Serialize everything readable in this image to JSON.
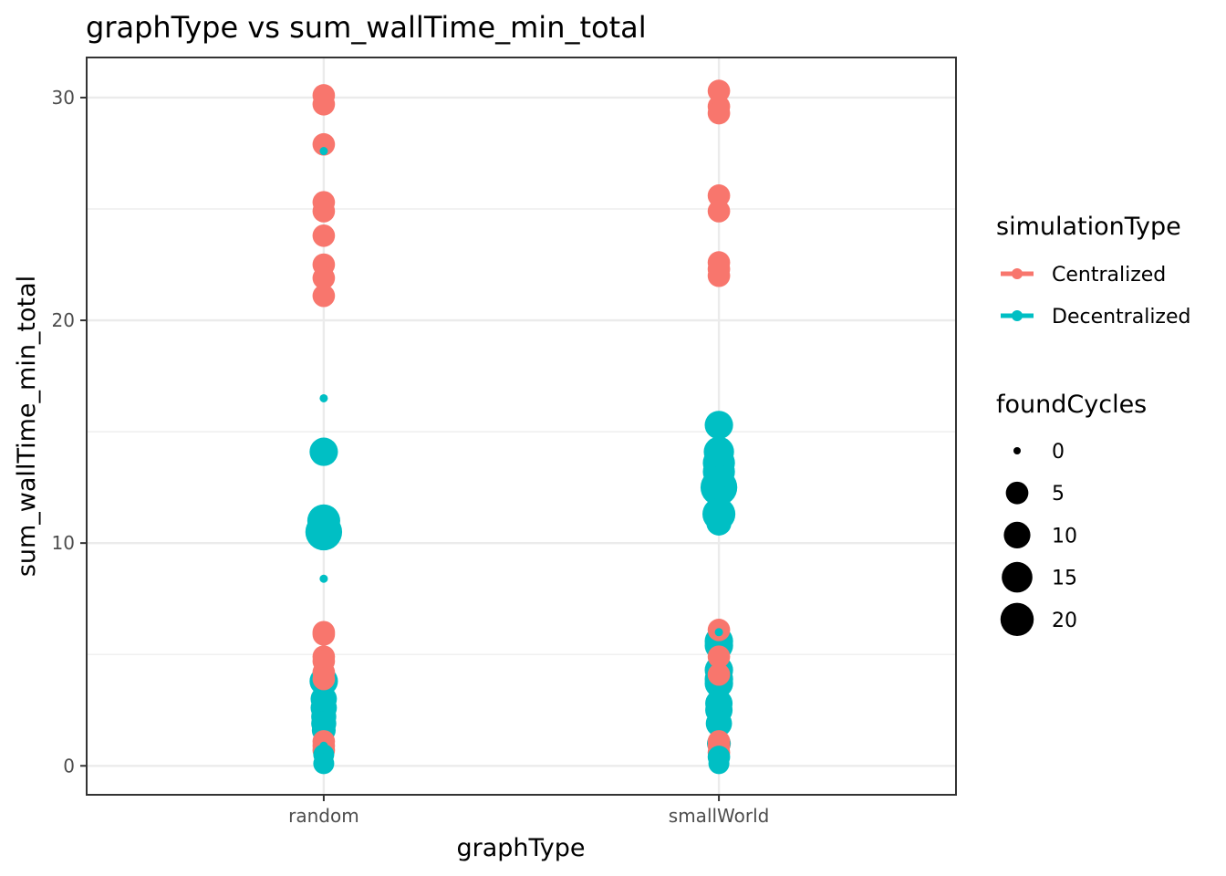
{
  "chart_data": {
    "type": "scatter",
    "title": "graphType  vs  sum_wallTime_min_total",
    "xlabel": "graphType",
    "ylabel": "sum_wallTime_min_total",
    "categories": [
      "random",
      "smallWorld"
    ],
    "ylim": [
      -1.3,
      31.8
    ],
    "yticks": [
      0,
      10,
      20,
      30
    ],
    "grid": true,
    "legend_position": "right",
    "color_legend": {
      "title": "simulationType",
      "entries": [
        {
          "name": "Centralized",
          "color": "#F8766D"
        },
        {
          "name": "Decentralized",
          "color": "#00BFC4"
        }
      ]
    },
    "size_legend": {
      "title": "foundCycles",
      "entries": [
        0,
        5,
        10,
        15,
        20
      ]
    },
    "series": [
      {
        "name": "Centralized",
        "color": "#F8766D",
        "points": [
          {
            "x": "random",
            "y": 30.1,
            "size": 5
          },
          {
            "x": "random",
            "y": 29.7,
            "size": 5
          },
          {
            "x": "random",
            "y": 27.9,
            "size": 5
          },
          {
            "x": "random",
            "y": 25.3,
            "size": 5
          },
          {
            "x": "random",
            "y": 24.9,
            "size": 5
          },
          {
            "x": "random",
            "y": 23.8,
            "size": 5
          },
          {
            "x": "random",
            "y": 22.5,
            "size": 5
          },
          {
            "x": "random",
            "y": 21.9,
            "size": 5
          },
          {
            "x": "random",
            "y": 21.1,
            "size": 5
          },
          {
            "x": "random",
            "y": 6.0,
            "size": 5
          },
          {
            "x": "random",
            "y": 5.9,
            "size": 5
          },
          {
            "x": "random",
            "y": 4.9,
            "size": 5
          },
          {
            "x": "random",
            "y": 4.7,
            "size": 5
          },
          {
            "x": "random",
            "y": 4.2,
            "size": 5
          },
          {
            "x": "random",
            "y": 3.9,
            "size": 5
          },
          {
            "x": "random",
            "y": 1.1,
            "size": 5
          },
          {
            "x": "random",
            "y": 0.9,
            "size": 5
          },
          {
            "x": "random",
            "y": 0.7,
            "size": 5
          },
          {
            "x": "smallWorld",
            "y": 30.3,
            "size": 5
          },
          {
            "x": "smallWorld",
            "y": 29.6,
            "size": 5
          },
          {
            "x": "smallWorld",
            "y": 29.3,
            "size": 5
          },
          {
            "x": "smallWorld",
            "y": 25.6,
            "size": 5
          },
          {
            "x": "smallWorld",
            "y": 24.9,
            "size": 5
          },
          {
            "x": "smallWorld",
            "y": 22.6,
            "size": 5
          },
          {
            "x": "smallWorld",
            "y": 22.3,
            "size": 5
          },
          {
            "x": "smallWorld",
            "y": 22.0,
            "size": 5
          },
          {
            "x": "smallWorld",
            "y": 6.1,
            "size": 5
          },
          {
            "x": "smallWorld",
            "y": 4.9,
            "size": 5
          },
          {
            "x": "smallWorld",
            "y": 4.1,
            "size": 5
          },
          {
            "x": "smallWorld",
            "y": 1.1,
            "size": 5
          },
          {
            "x": "smallWorld",
            "y": 0.9,
            "size": 5
          },
          {
            "x": "smallWorld",
            "y": 0.6,
            "size": 5
          }
        ]
      },
      {
        "name": "Decentralized",
        "color": "#00BFC4",
        "points": [
          {
            "x": "random",
            "y": 27.6,
            "size": 0
          },
          {
            "x": "random",
            "y": 16.5,
            "size": 0
          },
          {
            "x": "random",
            "y": 14.1,
            "size": 10
          },
          {
            "x": "random",
            "y": 11.0,
            "size": 15
          },
          {
            "x": "random",
            "y": 10.5,
            "size": 20
          },
          {
            "x": "random",
            "y": 8.4,
            "size": 0
          },
          {
            "x": "random",
            "y": 3.8,
            "size": 10
          },
          {
            "x": "random",
            "y": 3.0,
            "size": 8
          },
          {
            "x": "random",
            "y": 2.6,
            "size": 8
          },
          {
            "x": "random",
            "y": 2.2,
            "size": 7
          },
          {
            "x": "random",
            "y": 1.9,
            "size": 7
          },
          {
            "x": "random",
            "y": 1.6,
            "size": 6
          },
          {
            "x": "random",
            "y": 0.9,
            "size": 0
          },
          {
            "x": "random",
            "y": 0.5,
            "size": 4
          },
          {
            "x": "random",
            "y": 0.1,
            "size": 4
          },
          {
            "x": "smallWorld",
            "y": 15.3,
            "size": 10
          },
          {
            "x": "smallWorld",
            "y": 14.1,
            "size": 12
          },
          {
            "x": "smallWorld",
            "y": 13.6,
            "size": 14
          },
          {
            "x": "smallWorld",
            "y": 13.2,
            "size": 14
          },
          {
            "x": "smallWorld",
            "y": 12.5,
            "size": 20
          },
          {
            "x": "smallWorld",
            "y": 11.3,
            "size": 15
          },
          {
            "x": "smallWorld",
            "y": 10.9,
            "size": 7
          },
          {
            "x": "smallWorld",
            "y": 6.0,
            "size": 0
          },
          {
            "x": "smallWorld",
            "y": 5.6,
            "size": 10
          },
          {
            "x": "smallWorld",
            "y": 5.4,
            "size": 10
          },
          {
            "x": "smallWorld",
            "y": 4.3,
            "size": 10
          },
          {
            "x": "smallWorld",
            "y": 3.9,
            "size": 10
          },
          {
            "x": "smallWorld",
            "y": 3.7,
            "size": 10
          },
          {
            "x": "smallWorld",
            "y": 2.8,
            "size": 9
          },
          {
            "x": "smallWorld",
            "y": 2.5,
            "size": 9
          },
          {
            "x": "smallWorld",
            "y": 1.9,
            "size": 8
          },
          {
            "x": "smallWorld",
            "y": 1.0,
            "size": 6
          },
          {
            "x": "smallWorld",
            "y": 0.4,
            "size": 5
          },
          {
            "x": "smallWorld",
            "y": 0.1,
            "size": 4
          }
        ]
      }
    ]
  }
}
